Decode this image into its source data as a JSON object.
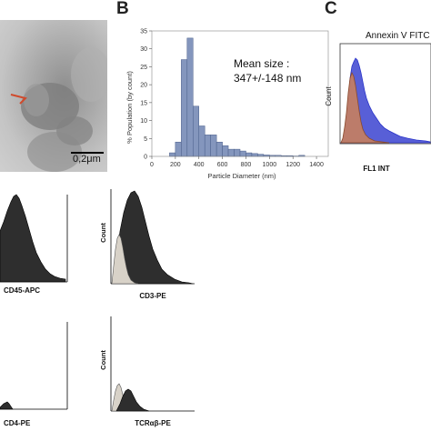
{
  "panels": {
    "a": {
      "scale_bar_label": "0,2μm"
    },
    "b": {
      "letter": "B",
      "annotation": [
        "Mean size :",
        "347+/-148 nm"
      ]
    },
    "c": {
      "letter": "C",
      "title": "Annexin V FITC",
      "ylabel": "Count",
      "xlabel": "FL1 INT"
    },
    "flow": [
      {
        "id": "cd45",
        "xlabel": "CD45-APC",
        "ylabel": ""
      },
      {
        "id": "cd3",
        "xlabel": "CD3-PE",
        "ylabel": "Count"
      },
      {
        "id": "cd4",
        "xlabel": "CD4-PE",
        "ylabel": ""
      },
      {
        "id": "tcr",
        "xlabel": "TCRαβ-PE",
        "ylabel": "Count"
      }
    ]
  },
  "colors": {
    "bar_fill": "#8496bd",
    "bar_stroke": "#4a5e8a",
    "annexin_blue": "#2b35c9",
    "annexin_orange": "#c8805e",
    "isotype_fill": "#d8d2c8",
    "stain_fill": "#2e2e2e"
  },
  "chart_data": [
    {
      "type": "bar",
      "panel": "B",
      "xlabel": "Particle Diameter (nm)",
      "ylabel": "% Population (by count)",
      "xlim": [
        0,
        1500
      ],
      "ylim": [
        0,
        35
      ],
      "xticks": [
        0,
        200,
        400,
        600,
        800,
        1000,
        1200,
        1400
      ],
      "yticks": [
        0,
        5,
        10,
        15,
        20,
        25,
        30,
        35
      ],
      "bin_width": 50,
      "bin_starts": [
        150,
        200,
        250,
        300,
        350,
        400,
        450,
        500,
        550,
        600,
        650,
        700,
        750,
        800,
        850,
        900,
        950,
        1000,
        1050,
        1100,
        1150,
        1200,
        1250
      ],
      "values": [
        1,
        4,
        27,
        33,
        14,
        8.5,
        6,
        6,
        4,
        3,
        2,
        2,
        1.5,
        1,
        0.8,
        0.6,
        0.4,
        0.3,
        0.3,
        0.2,
        0.2,
        0.1,
        0.3
      ]
    }
  ]
}
